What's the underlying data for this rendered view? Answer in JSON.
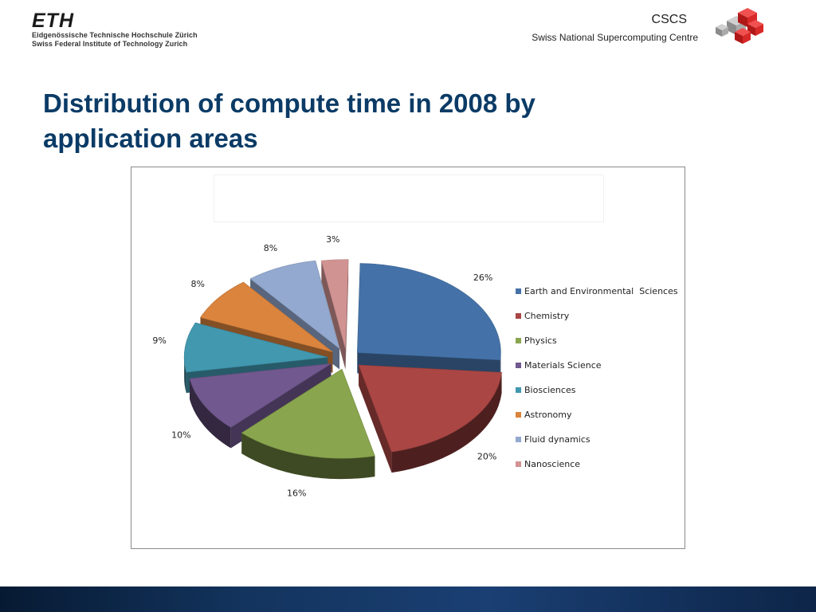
{
  "header": {
    "eth_logo_text": "ETH",
    "eth_line1": "Eidgenössische Technische Hochschule Zürich",
    "eth_line2": "Swiss Federal Institute of Technology Zurich",
    "cscs_name": "CSCS",
    "cscs_full": "Swiss National Supercomputing Centre"
  },
  "slide": {
    "title": "Distribution of compute time in 2008 by application areas"
  },
  "chart_data": {
    "type": "pie",
    "title": "",
    "legend_position": "right",
    "slices": [
      {
        "name": "Earth and Environmental  Sciences",
        "value": 26,
        "label": "26%",
        "color": "#4472a8"
      },
      {
        "name": "Chemistry",
        "value": 20,
        "label": "20%",
        "color": "#aa4644"
      },
      {
        "name": "Physics",
        "value": 16,
        "label": "16%",
        "color": "#89a54e"
      },
      {
        "name": "Materials Science",
        "value": 10,
        "label": "10%",
        "color": "#71588f"
      },
      {
        "name": "Biosciences",
        "value": 9,
        "label": "9%",
        "color": "#4198af"
      },
      {
        "name": "Astronomy",
        "value": 8,
        "label": "8%",
        "color": "#db843d"
      },
      {
        "name": "Fluid dynamics",
        "value": 8,
        "label": "8%",
        "color": "#93a9cf"
      },
      {
        "name": "Nanoscience",
        "value": 3,
        "label": "3%",
        "color": "#d19392"
      }
    ]
  }
}
